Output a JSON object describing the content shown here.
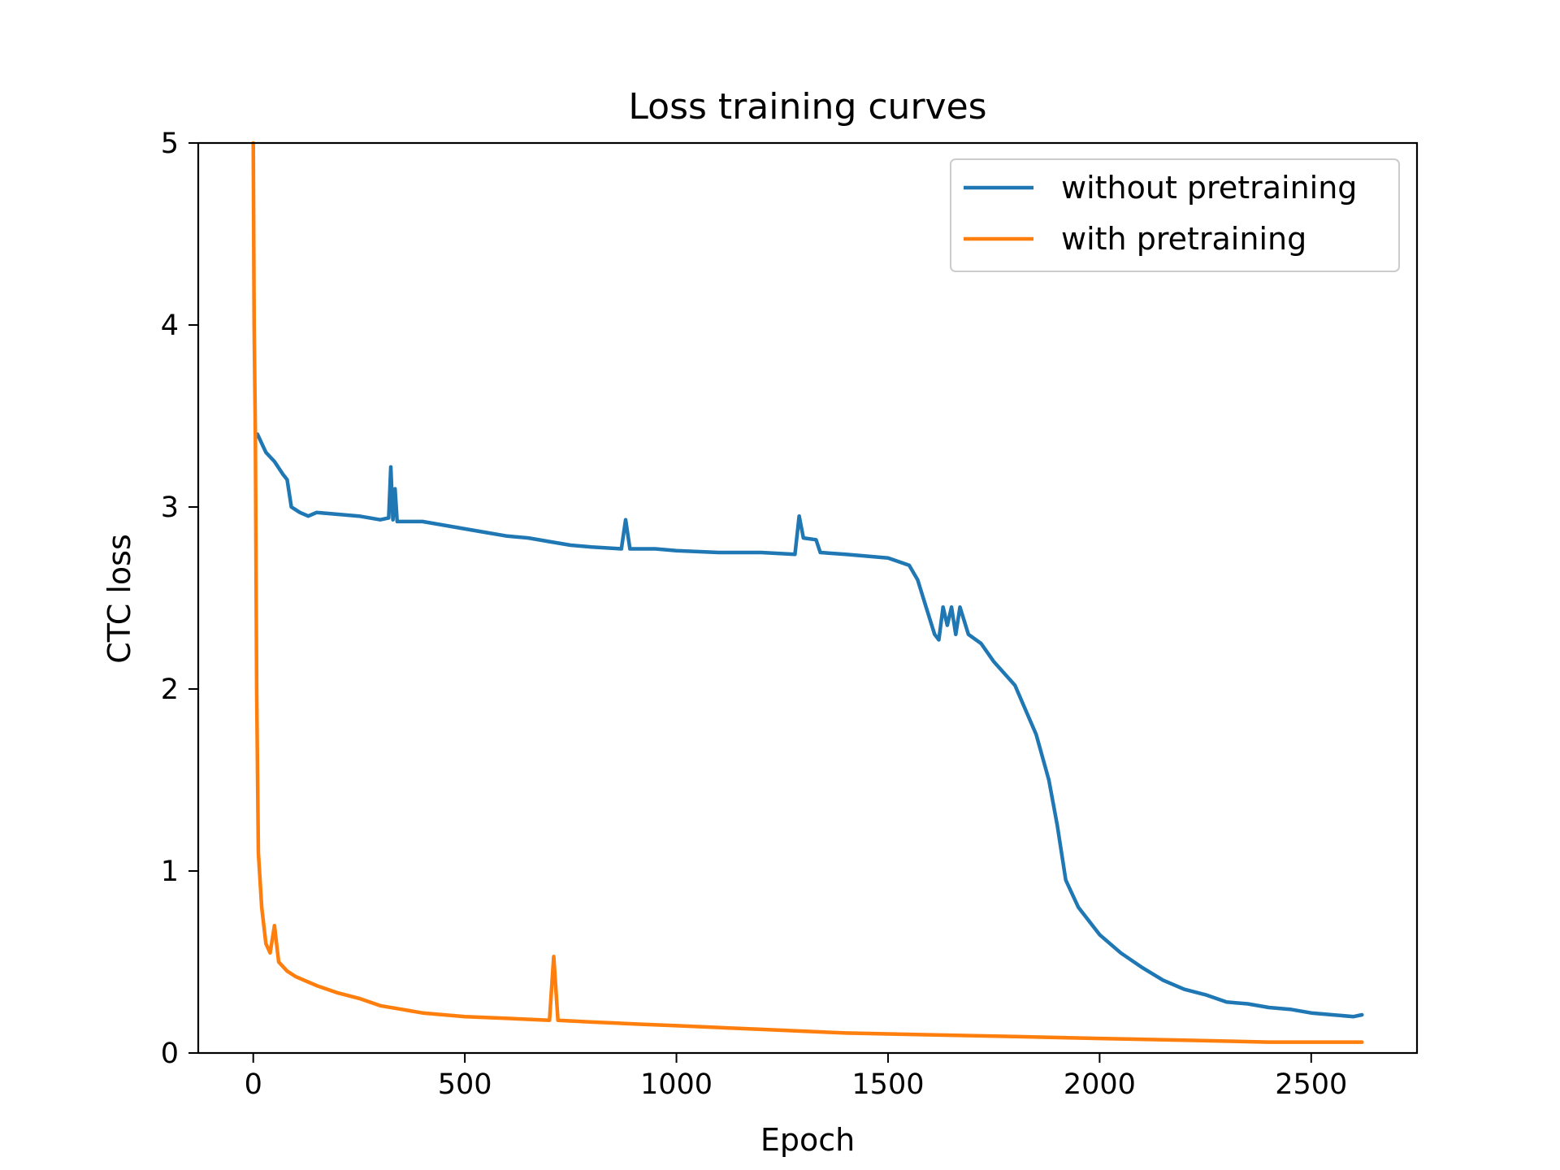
{
  "chart_data": {
    "type": "line",
    "title": "Loss training curves",
    "xlabel": "Epoch",
    "ylabel": "CTC loss",
    "xlim": [
      -130,
      2750
    ],
    "ylim": [
      0,
      5
    ],
    "x_ticks": [
      0,
      500,
      1000,
      1500,
      2000,
      2500
    ],
    "y_ticks": [
      0,
      1,
      2,
      3,
      4,
      5
    ],
    "grid": false,
    "legend_position": "top-right",
    "series": [
      {
        "name": "without pretraining",
        "color": "#1f77b4",
        "points": [
          [
            10,
            3.4
          ],
          [
            30,
            3.3
          ],
          [
            50,
            3.25
          ],
          [
            70,
            3.18
          ],
          [
            80,
            3.15
          ],
          [
            90,
            3.0
          ],
          [
            110,
            2.97
          ],
          [
            130,
            2.95
          ],
          [
            150,
            2.97
          ],
          [
            200,
            2.96
          ],
          [
            250,
            2.95
          ],
          [
            300,
            2.93
          ],
          [
            320,
            2.94
          ],
          [
            325,
            3.22
          ],
          [
            330,
            2.93
          ],
          [
            335,
            3.1
          ],
          [
            340,
            2.92
          ],
          [
            400,
            2.92
          ],
          [
            450,
            2.9
          ],
          [
            500,
            2.88
          ],
          [
            550,
            2.86
          ],
          [
            600,
            2.84
          ],
          [
            650,
            2.83
          ],
          [
            700,
            2.81
          ],
          [
            750,
            2.79
          ],
          [
            800,
            2.78
          ],
          [
            870,
            2.77
          ],
          [
            880,
            2.93
          ],
          [
            890,
            2.77
          ],
          [
            950,
            2.77
          ],
          [
            1000,
            2.76
          ],
          [
            1100,
            2.75
          ],
          [
            1200,
            2.75
          ],
          [
            1280,
            2.74
          ],
          [
            1290,
            2.95
          ],
          [
            1300,
            2.83
          ],
          [
            1330,
            2.82
          ],
          [
            1340,
            2.75
          ],
          [
            1400,
            2.74
          ],
          [
            1500,
            2.72
          ],
          [
            1550,
            2.68
          ],
          [
            1570,
            2.6
          ],
          [
            1590,
            2.45
          ],
          [
            1610,
            2.3
          ],
          [
            1620,
            2.27
          ],
          [
            1630,
            2.45
          ],
          [
            1640,
            2.35
          ],
          [
            1650,
            2.45
          ],
          [
            1660,
            2.3
          ],
          [
            1670,
            2.45
          ],
          [
            1690,
            2.3
          ],
          [
            1720,
            2.25
          ],
          [
            1750,
            2.15
          ],
          [
            1800,
            2.02
          ],
          [
            1850,
            1.75
          ],
          [
            1880,
            1.5
          ],
          [
            1900,
            1.25
          ],
          [
            1920,
            0.95
          ],
          [
            1950,
            0.8
          ],
          [
            2000,
            0.65
          ],
          [
            2050,
            0.55
          ],
          [
            2100,
            0.47
          ],
          [
            2150,
            0.4
          ],
          [
            2200,
            0.35
          ],
          [
            2250,
            0.32
          ],
          [
            2300,
            0.28
          ],
          [
            2350,
            0.27
          ],
          [
            2400,
            0.25
          ],
          [
            2450,
            0.24
          ],
          [
            2500,
            0.22
          ],
          [
            2550,
            0.21
          ],
          [
            2600,
            0.2
          ],
          [
            2620,
            0.21
          ]
        ]
      },
      {
        "name": "with pretraining",
        "color": "#ff7f0e",
        "points": [
          [
            0,
            5.0
          ],
          [
            2,
            4.0
          ],
          [
            5,
            3.4
          ],
          [
            8,
            2.0
          ],
          [
            12,
            1.1
          ],
          [
            20,
            0.8
          ],
          [
            30,
            0.6
          ],
          [
            40,
            0.55
          ],
          [
            50,
            0.7
          ],
          [
            60,
            0.5
          ],
          [
            80,
            0.45
          ],
          [
            100,
            0.42
          ],
          [
            150,
            0.37
          ],
          [
            200,
            0.33
          ],
          [
            250,
            0.3
          ],
          [
            300,
            0.26
          ],
          [
            350,
            0.24
          ],
          [
            400,
            0.22
          ],
          [
            450,
            0.21
          ],
          [
            500,
            0.2
          ],
          [
            600,
            0.19
          ],
          [
            700,
            0.18
          ],
          [
            710,
            0.53
          ],
          [
            720,
            0.18
          ],
          [
            800,
            0.17
          ],
          [
            900,
            0.16
          ],
          [
            1000,
            0.15
          ],
          [
            1200,
            0.13
          ],
          [
            1400,
            0.11
          ],
          [
            1600,
            0.1
          ],
          [
            1800,
            0.09
          ],
          [
            2000,
            0.08
          ],
          [
            2200,
            0.07
          ],
          [
            2400,
            0.06
          ],
          [
            2620,
            0.06
          ]
        ]
      }
    ]
  }
}
